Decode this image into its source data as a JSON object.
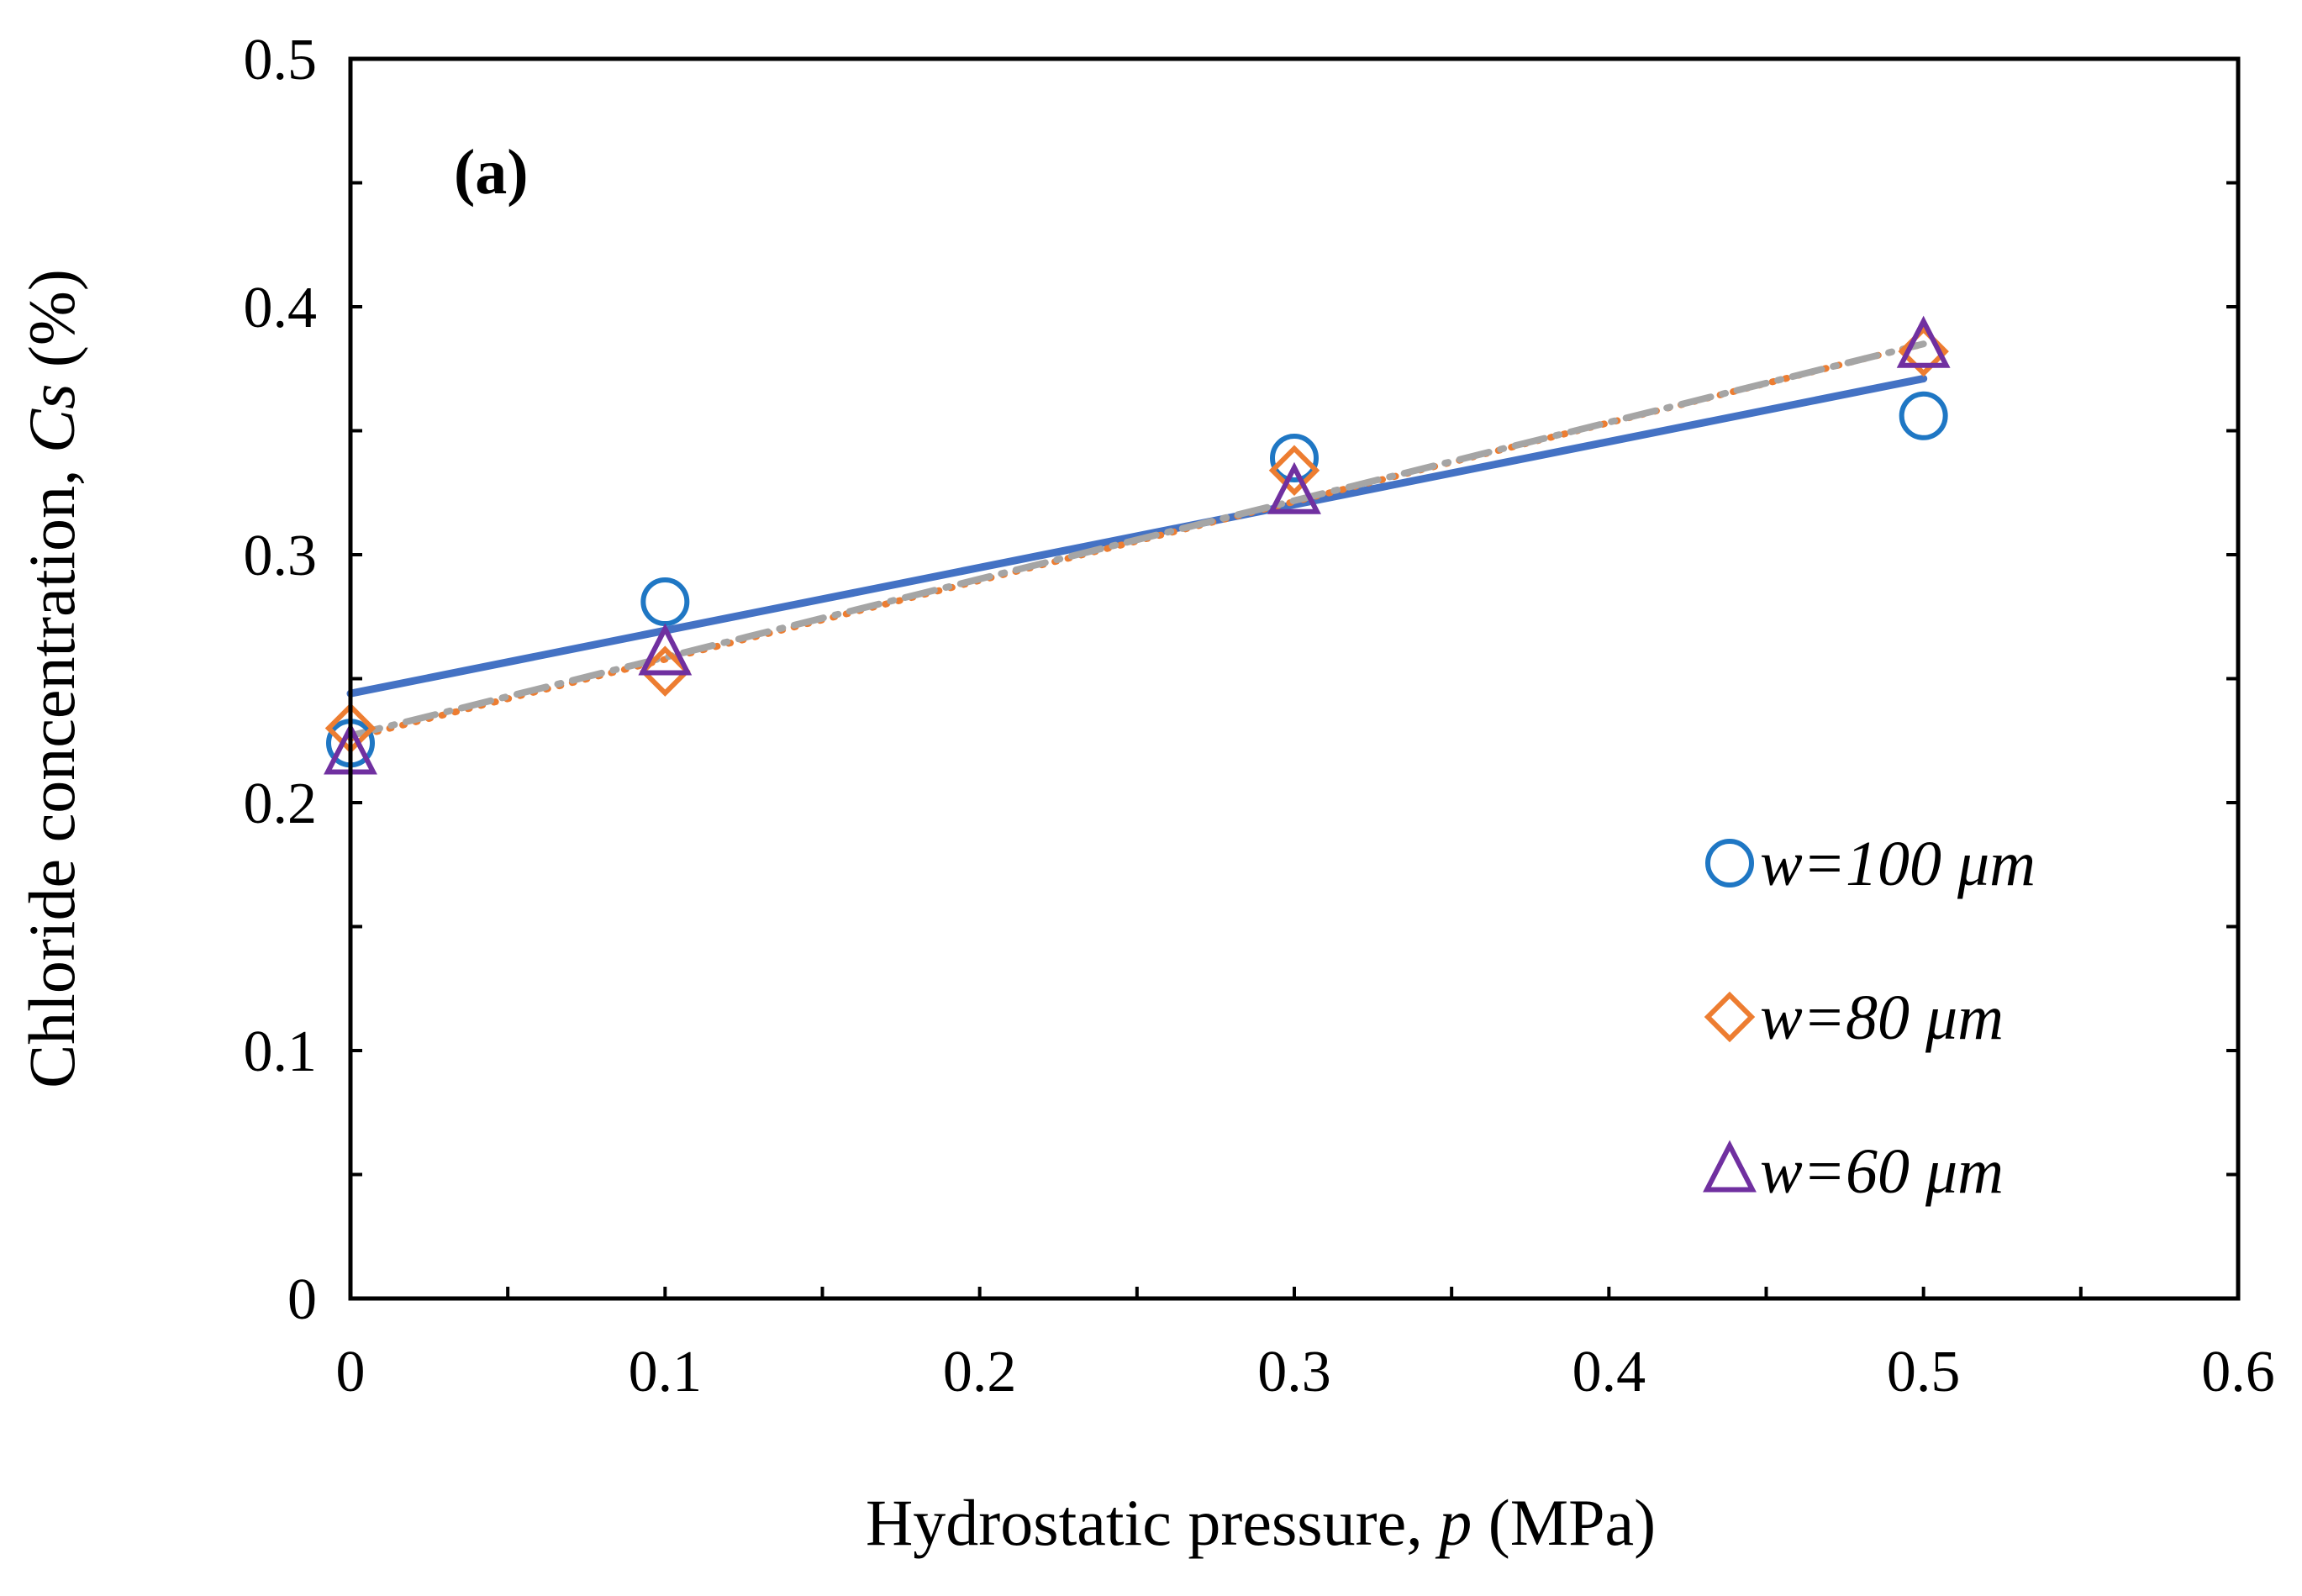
{
  "chart_data": {
    "type": "scatter",
    "panel_label": "(a)",
    "xlabel_main": "Hydrostatic pressure, ",
    "xlabel_var": "p",
    "xlabel_unit": " (MPa)",
    "ylabel_main": "Chloride concentration, ",
    "ylabel_var": "Cs",
    "ylabel_unit": " (%)",
    "xlim": [
      0,
      0.6
    ],
    "ylim": [
      0,
      0.5
    ],
    "x_ticks": [
      "0",
      "0.1",
      "0.2",
      "0.3",
      "0.4",
      "0.5",
      "0.6"
    ],
    "y_ticks": [
      "0",
      "0.1",
      "0.2",
      "0.3",
      "0.4",
      "0.5"
    ],
    "legend_position": "bottom-right",
    "series": [
      {
        "name": "w=100 μm",
        "marker": "circle",
        "color": "#1f77c4",
        "x": [
          0,
          0.1,
          0.3,
          0.5
        ],
        "y": [
          0.224,
          0.281,
          0.339,
          0.356
        ],
        "trend": {
          "style": "solid",
          "color": "#4472c4",
          "from": [
            0,
            0.244
          ],
          "to": [
            0.5,
            0.371
          ]
        }
      },
      {
        "name": "w=80 μm",
        "marker": "diamond",
        "color": "#ed7d31",
        "x": [
          0,
          0.1,
          0.3,
          0.5
        ],
        "y": [
          0.23,
          0.253,
          0.334,
          0.382
        ],
        "trend": {
          "style": "dotted",
          "color": "#ed7d31",
          "from": [
            0,
            0.226
          ],
          "to": [
            0.5,
            0.385
          ]
        }
      },
      {
        "name": "w=60 μm",
        "marker": "triangle",
        "color": "#7030a0",
        "x": [
          0,
          0.1,
          0.3,
          0.5
        ],
        "y": [
          0.22,
          0.26,
          0.325,
          0.384
        ],
        "trend": {
          "style": "dashdot",
          "color": "#a5a5a5",
          "from": [
            0,
            0.227
          ],
          "to": [
            0.5,
            0.385
          ]
        }
      }
    ]
  }
}
